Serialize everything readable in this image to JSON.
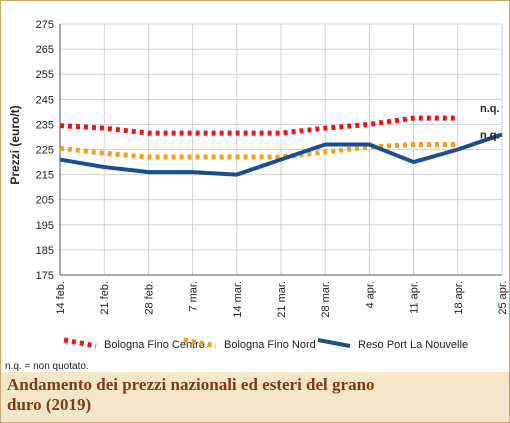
{
  "title": "Andamento dei prezzi nazionali ed esteri del grano duro (2019)",
  "note": "n.q. = non quotato.",
  "nq_label": "n.q.",
  "chart_data": {
    "type": "line",
    "categories": [
      "14 feb.",
      "21 feb.",
      "28 feb.",
      "7 mar.",
      "14 mar.",
      "21 mar.",
      "28 mar.",
      "4 apr.",
      "11 apr.",
      "18 apr.",
      "25 apr."
    ],
    "ylabel": "Prezzi (euro/t)",
    "ylim": [
      175,
      275
    ],
    "yticks": [
      175,
      185,
      195,
      205,
      215,
      225,
      235,
      245,
      255,
      265,
      275
    ],
    "grid": true,
    "legend_position": "bottom",
    "series": [
      {
        "name": "Bologna Fino Centro",
        "color": "#e8141c",
        "style": "dotted",
        "values": [
          234.5,
          233.5,
          231.5,
          231.5,
          231.5,
          231.5,
          233.5,
          235,
          237.5,
          237.5,
          null
        ]
      },
      {
        "name": "Bologna Fino Nord",
        "color": "#f0a020",
        "style": "dotted",
        "values": [
          225.5,
          223.5,
          222,
          222,
          222,
          222,
          224,
          226,
          227,
          227,
          null
        ]
      },
      {
        "name": "Reso Port La Nouvelle",
        "color": "#1a4f8f",
        "style": "solid",
        "values": [
          221,
          218,
          216,
          216,
          215,
          221,
          227,
          227,
          220,
          225,
          231
        ]
      }
    ],
    "annotations": [
      {
        "series": 0,
        "text": "n.q."
      },
      {
        "series": 1,
        "text": "n.q."
      }
    ]
  }
}
